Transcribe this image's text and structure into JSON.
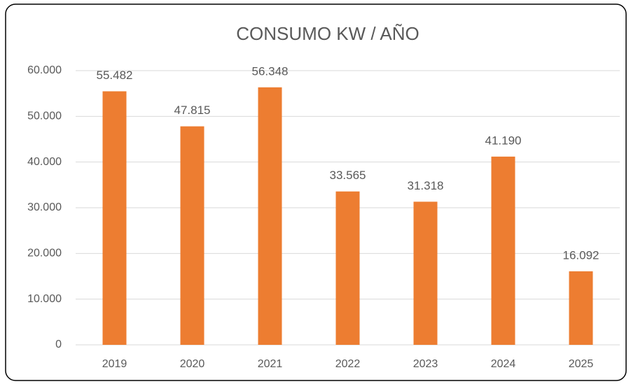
{
  "chart_data": {
    "type": "bar",
    "title": "CONSUMO KW / AÑO",
    "categories": [
      "2019",
      "2020",
      "2021",
      "2022",
      "2023",
      "2024",
      "2025"
    ],
    "values": [
      55482,
      47815,
      56348,
      33565,
      31318,
      41190,
      16092
    ],
    "value_labels": [
      "55.482",
      "47.815",
      "56.348",
      "33.565",
      "31.318",
      "41.190",
      "16.092"
    ],
    "color": "#ed7d31",
    "ylim": [
      0,
      60000
    ],
    "yticks": [
      0,
      {
        "value": 10000,
        "label": "10.000"
      },
      {
        "value": 20000,
        "label": "20.000"
      },
      {
        "value": 30000,
        "label": "30.000"
      },
      {
        "value": 40000,
        "label": "40.000"
      },
      {
        "value": 50000,
        "label": "50.000"
      },
      {
        "value": 60000,
        "label": "60.000"
      }
    ],
    "grid": true
  }
}
